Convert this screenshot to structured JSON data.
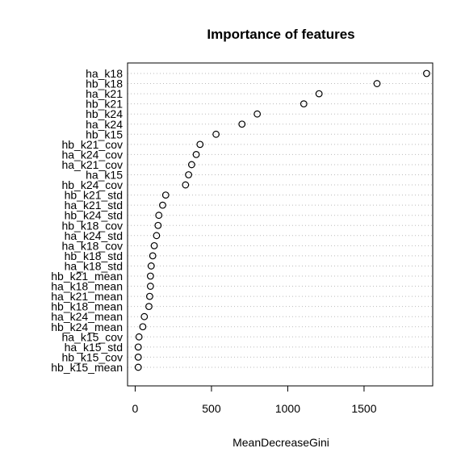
{
  "chart_data": {
    "type": "scatter",
    "title": "Importance of features",
    "xlabel": "MeanDecreaseGini",
    "ylabel": "",
    "xlim": [
      -50,
      1950
    ],
    "xticks": [
      0,
      500,
      1000,
      1500
    ],
    "grid": "horizontal-dotted",
    "categories": [
      "ha_k18",
      "hb_k18",
      "ha_k21",
      "hb_k21",
      "hb_k24",
      "ha_k24",
      "hb_k15",
      "hb_k21_cov",
      "ha_k24_cov",
      "ha_k21_cov",
      "ha_k15",
      "hb_k24_cov",
      "hb_k21_std",
      "ha_k21_std",
      "hb_k24_std",
      "hb_k18_cov",
      "ha_k24_std",
      "ha_k18_cov",
      "hb_k18_std",
      "ha_k18_std",
      "hb_k21_mean",
      "ha_k18_mean",
      "ha_k21_mean",
      "hb_k18_mean",
      "ha_k24_mean",
      "hb_k24_mean",
      "ha_k15_cov",
      "ha_k15_std",
      "hb_k15_cov",
      "hb_k15_mean"
    ],
    "values": [
      1910,
      1585,
      1205,
      1105,
      800,
      700,
      530,
      425,
      400,
      370,
      350,
      330,
      200,
      180,
      155,
      150,
      140,
      125,
      115,
      105,
      100,
      100,
      95,
      90,
      60,
      50,
      25,
      20,
      20,
      20
    ]
  }
}
